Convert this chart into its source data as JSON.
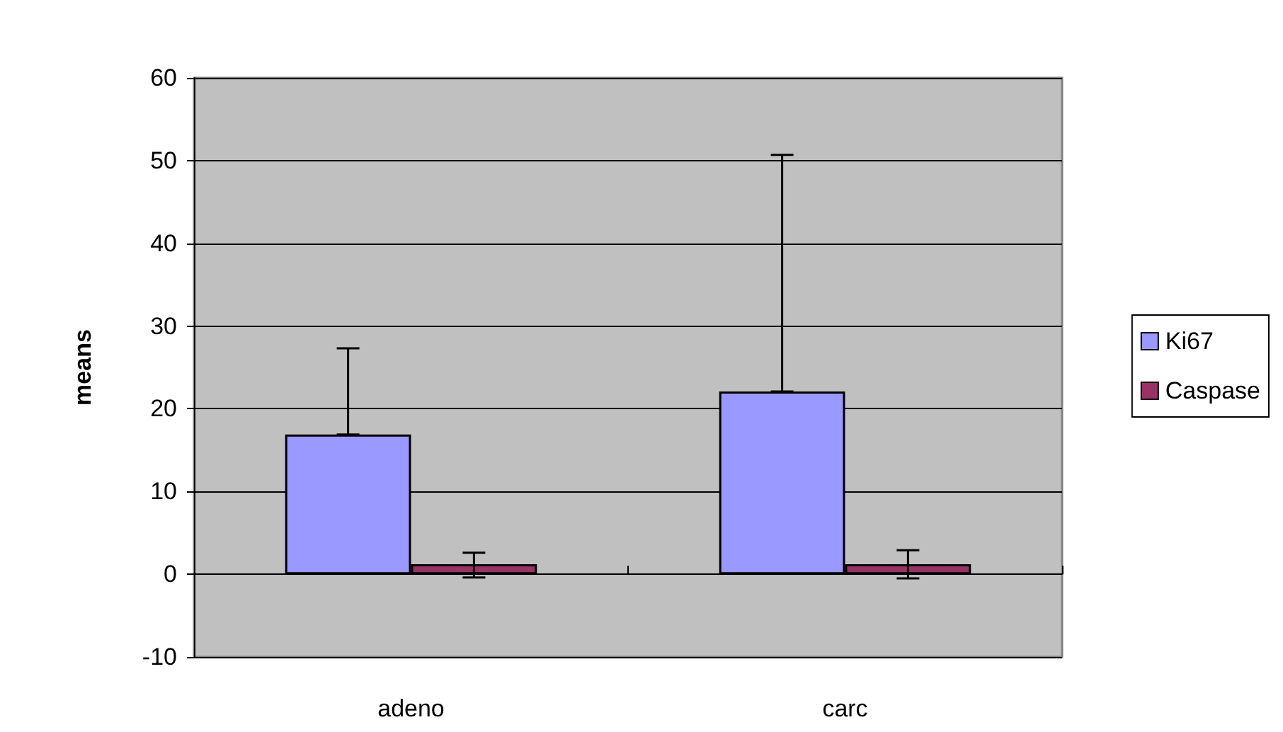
{
  "chart_data": {
    "type": "bar",
    "ylabel": "means",
    "categories": [
      "adeno",
      "carc"
    ],
    "series": [
      {
        "name": "Ki67",
        "color": "#9999ff",
        "values": [
          16.9,
          22.1
        ],
        "errors": [
          [
            16.9,
            27.3
          ],
          [
            22.1,
            50.7
          ]
        ]
      },
      {
        "name": "Caspase",
        "color": "#993366",
        "values": [
          1.2,
          1.2
        ],
        "errors": [
          [
            -0.4,
            2.6
          ],
          [
            -0.5,
            2.9
          ]
        ]
      }
    ],
    "ylim": [
      -10,
      60
    ],
    "yticks": [
      -10,
      0,
      10,
      20,
      30,
      40,
      50,
      60
    ],
    "grid": "y",
    "legend": "right"
  }
}
